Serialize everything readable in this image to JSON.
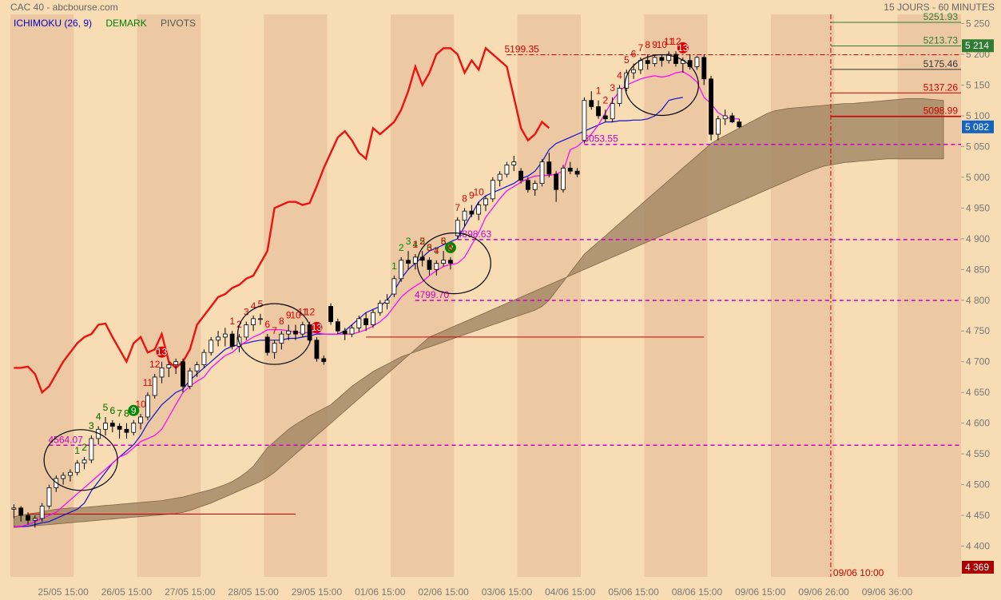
{
  "header": {
    "title": "CAC 40 - abcbourse.com",
    "period": "15 JOURS - 60 MINUTES",
    "legend": [
      {
        "label": "ICHIMOKU (26, 9)",
        "color": "#0000cc"
      },
      {
        "label": "DEMARK",
        "color": "#008000"
      },
      {
        "label": "PIVOTS",
        "color": "#555555"
      }
    ]
  },
  "chart_data": {
    "type": "candlestick",
    "ylim": [
      4350,
      5265
    ],
    "y_ticks": [
      {
        "v": 4400,
        "label": "4 400"
      },
      {
        "v": 4450,
        "label": "4 450"
      },
      {
        "v": 4500,
        "label": "4 500"
      },
      {
        "v": 4550,
        "label": "4 550"
      },
      {
        "v": 4600,
        "label": "4 600"
      },
      {
        "v": 4650,
        "label": "4 650"
      },
      {
        "v": 4700,
        "label": "4 700"
      },
      {
        "v": 4750,
        "label": "4 750"
      },
      {
        "v": 4800,
        "label": "4 800"
      },
      {
        "v": 4850,
        "label": "4 850"
      },
      {
        "v": 4900,
        "label": "4 900"
      },
      {
        "v": 4950,
        "label": "4 950"
      },
      {
        "v": 5000,
        "label": "5 000"
      },
      {
        "v": 5050,
        "label": "5 050"
      },
      {
        "v": 5100,
        "label": "5 100"
      },
      {
        "v": 5150,
        "label": "5 150"
      },
      {
        "v": 5200,
        "label": "5 200"
      },
      {
        "v": 5250,
        "label": "5 250"
      }
    ],
    "x_ticks": [
      "25/05 15:00",
      "26/05 15:00",
      "27/05 15:00",
      "28/05 15:00",
      "29/05 15:00",
      "01/06 15:00",
      "02/06 15:00",
      "03/06 15:00",
      "04/06 15:00",
      "05/06 15:00",
      "08/06 15:00",
      "09/06 15:00",
      "09/06 26:00",
      "09/06 36:00"
    ],
    "n_days": 15,
    "bars_per_day": 9,
    "last_price": {
      "value": 5082,
      "label": "5 082",
      "color": "#1565c0"
    },
    "cursor": {
      "bar": 116,
      "label": "09/06 10:00",
      "price_label": "4 369"
    },
    "candles": [
      [
        4460,
        4468,
        4445,
        4462
      ],
      [
        4462,
        4465,
        4440,
        4450
      ],
      [
        4450,
        4455,
        4435,
        4442
      ],
      [
        4442,
        4450,
        4430,
        4445
      ],
      [
        4445,
        4470,
        4440,
        4465
      ],
      [
        4465,
        4500,
        4460,
        4495
      ],
      [
        4495,
        4515,
        4488,
        4510
      ],
      [
        4510,
        4520,
        4500,
        4515
      ],
      [
        4515,
        4525,
        4505,
        4520
      ],
      [
        4520,
        4540,
        4515,
        4535
      ],
      [
        4535,
        4545,
        4525,
        4540
      ],
      [
        4540,
        4580,
        4535,
        4575
      ],
      [
        4575,
        4595,
        4565,
        4590
      ],
      [
        4590,
        4610,
        4580,
        4600
      ],
      [
        4600,
        4605,
        4585,
        4595
      ],
      [
        4595,
        4600,
        4575,
        4590
      ],
      [
        4590,
        4600,
        4575,
        4585
      ],
      [
        4585,
        4605,
        4580,
        4600
      ],
      [
        4600,
        4615,
        4590,
        4610
      ],
      [
        4610,
        4650,
        4605,
        4645
      ],
      [
        4645,
        4680,
        4640,
        4675
      ],
      [
        4675,
        4700,
        4665,
        4690
      ],
      [
        4690,
        4700,
        4675,
        4695
      ],
      [
        4695,
        4705,
        4680,
        4700
      ],
      [
        4700,
        4705,
        4650,
        4660
      ],
      [
        4660,
        4690,
        4655,
        4685
      ],
      [
        4685,
        4700,
        4675,
        4695
      ],
      [
        4695,
        4720,
        4690,
        4715
      ],
      [
        4715,
        4740,
        4710,
        4735
      ],
      [
        4735,
        4750,
        4725,
        4740
      ],
      [
        4740,
        4755,
        4725,
        4745
      ],
      [
        4745,
        4750,
        4720,
        4725
      ],
      [
        4725,
        4745,
        4715,
        4740
      ],
      [
        4740,
        4765,
        4735,
        4760
      ],
      [
        4760,
        4775,
        4750,
        4770
      ],
      [
        4770,
        4778,
        4760,
        4770
      ],
      [
        4740,
        4745,
        4710,
        4715
      ],
      [
        4715,
        4735,
        4705,
        4730
      ],
      [
        4730,
        4750,
        4720,
        4745
      ],
      [
        4745,
        4760,
        4735,
        4750
      ],
      [
        4750,
        4760,
        4735,
        4745
      ],
      [
        4745,
        4765,
        4740,
        4760
      ],
      [
        4760,
        4765,
        4730,
        4735
      ],
      [
        4735,
        4740,
        4700,
        4705
      ],
      [
        4705,
        4710,
        4695,
        4700
      ],
      [
        4790,
        4795,
        4760,
        4765
      ],
      [
        4765,
        4770,
        4745,
        4750
      ],
      [
        4750,
        4755,
        4735,
        4745
      ],
      [
        4745,
        4760,
        4740,
        4755
      ],
      [
        4755,
        4775,
        4748,
        4770
      ],
      [
        4770,
        4780,
        4750,
        4760
      ],
      [
        4760,
        4785,
        4755,
        4780
      ],
      [
        4780,
        4800,
        4775,
        4795
      ],
      [
        4795,
        4810,
        4785,
        4800
      ],
      [
        4810,
        4840,
        4805,
        4835
      ],
      [
        4835,
        4870,
        4830,
        4865
      ],
      [
        4865,
        4880,
        4850,
        4860
      ],
      [
        4860,
        4875,
        4850,
        4870
      ],
      [
        4870,
        4880,
        4855,
        4865
      ],
      [
        4865,
        4870,
        4840,
        4850
      ],
      [
        4850,
        4865,
        4840,
        4860
      ],
      [
        4860,
        4880,
        4855,
        4865
      ],
      [
        4865,
        4870,
        4850,
        4860
      ],
      [
        4905,
        4935,
        4900,
        4930
      ],
      [
        4930,
        4950,
        4920,
        4945
      ],
      [
        4945,
        4955,
        4935,
        4940
      ],
      [
        4940,
        4960,
        4930,
        4955
      ],
      [
        4955,
        4970,
        4945,
        4965
      ],
      [
        4965,
        5000,
        4960,
        4995
      ],
      [
        4995,
        5010,
        4985,
        5005
      ],
      [
        5005,
        5025,
        5000,
        5020
      ],
      [
        5020,
        5035,
        5010,
        5025
      ],
      [
        5010,
        5015,
        4990,
        4995
      ],
      [
        4995,
        5000,
        4975,
        4980
      ],
      [
        4980,
        4995,
        4970,
        4990
      ],
      [
        4990,
        5030,
        4985,
        5025
      ],
      [
        5025,
        5040,
        5000,
        5005
      ],
      [
        5005,
        5010,
        4960,
        4980
      ],
      [
        4980,
        5020,
        4975,
        5015
      ],
      [
        5015,
        5025,
        5005,
        5010
      ],
      [
        5010,
        5015,
        5000,
        5005
      ],
      [
        5060,
        5130,
        5055,
        5125
      ],
      [
        5125,
        5140,
        5110,
        5115
      ],
      [
        5115,
        5125,
        5095,
        5100
      ],
      [
        5100,
        5110,
        5090,
        5095
      ],
      [
        5095,
        5130,
        5090,
        5120
      ],
      [
        5120,
        5150,
        5115,
        5145
      ],
      [
        5145,
        5175,
        5140,
        5170
      ],
      [
        5170,
        5185,
        5160,
        5175
      ],
      [
        5175,
        5195,
        5168,
        5190
      ],
      [
        5190,
        5200,
        5175,
        5185
      ],
      [
        5185,
        5200,
        5180,
        5195
      ],
      [
        5195,
        5200,
        5180,
        5190
      ],
      [
        5190,
        5205,
        5185,
        5200
      ],
      [
        5200,
        5205,
        5180,
        5185
      ],
      [
        5185,
        5195,
        5170,
        5190
      ],
      [
        5190,
        5200,
        5175,
        5180
      ],
      [
        5180,
        5198,
        5175,
        5195
      ],
      [
        5195,
        5200,
        5150,
        5160
      ],
      [
        5160,
        5165,
        5060,
        5070
      ],
      [
        5070,
        5100,
        5060,
        5095
      ],
      [
        5095,
        5110,
        5085,
        5100
      ],
      [
        5100,
        5105,
        5088,
        5090
      ],
      [
        5090,
        5095,
        5080,
        5082
      ]
    ],
    "cloud_top": [
      4448,
      4450,
      4452,
      4454,
      4456,
      4458,
      4460,
      4461,
      4462,
      4462,
      4463,
      4464,
      4465,
      4466,
      4467,
      4468,
      4469,
      4470,
      4471,
      4472,
      4473,
      4474,
      4476,
      4478,
      4480,
      4483,
      4486,
      4489,
      4492,
      4496,
      4500,
      4505,
      4512,
      4520,
      4530,
      4545,
      4560,
      4570,
      4580,
      4590,
      4598,
      4605,
      4612,
      4618,
      4624,
      4630,
      4640,
      4650,
      4660,
      4668,
      4676,
      4684,
      4690,
      4696,
      4702,
      4708,
      4712,
      4716,
      4720,
      4724,
      4728,
      4732,
      4736,
      4740,
      4744,
      4748,
      4752,
      4756,
      4760,
      4764,
      4768,
      4772,
      4776,
      4780,
      4784,
      4790,
      4800,
      4815,
      4830,
      4845,
      4860,
      4875,
      4885,
      4895,
      4905,
      4915,
      4925,
      4935,
      4945,
      4955,
      4965,
      4975,
      4985,
      4995,
      5005,
      5015,
      5025,
      5035,
      5045,
      5055,
      5062,
      5068,
      5074,
      5080,
      5086,
      5092,
      5098,
      5104,
      5108,
      5110,
      5112,
      5113,
      5114,
      5115,
      5116,
      5117,
      5118,
      5119,
      5120,
      5120,
      5121,
      5122,
      5123,
      5124,
      5125,
      5126,
      5127,
      5128,
      5128,
      5128,
      5127,
      5126,
      5125
    ],
    "cloud_bottom": [
      4430,
      4431,
      4432,
      4433,
      4434,
      4435,
      4436,
      4437,
      4438,
      4439,
      4440,
      4441,
      4442,
      4443,
      4444,
      4445,
      4446,
      4447,
      4448,
      4449,
      4450,
      4451,
      4452,
      4453,
      4455,
      4458,
      4462,
      4466,
      4470,
      4475,
      4480,
      4485,
      4490,
      4495,
      4500,
      4505,
      4512,
      4520,
      4530,
      4540,
      4550,
      4560,
      4570,
      4580,
      4590,
      4600,
      4610,
      4620,
      4630,
      4640,
      4650,
      4660,
      4670,
      4680,
      4690,
      4700,
      4710,
      4720,
      4730,
      4740,
      4745,
      4750,
      4755,
      4760,
      4765,
      4770,
      4775,
      4780,
      4785,
      4790,
      4795,
      4800,
      4805,
      4810,
      4815,
      4820,
      4825,
      4830,
      4835,
      4840,
      4845,
      4850,
      4855,
      4860,
      4865,
      4870,
      4875,
      4880,
      4885,
      4890,
      4895,
      4900,
      4905,
      4910,
      4915,
      4920,
      4925,
      4930,
      4935,
      4940,
      4945,
      4950,
      4955,
      4960,
      4965,
      4970,
      4975,
      4980,
      4985,
      4990,
      4995,
      5000,
      5005,
      5010,
      5014,
      5018,
      5020,
      5022,
      5024,
      5025,
      5026,
      5027,
      5028,
      5029,
      5030,
      5030,
      5030,
      5030,
      5030,
      5030,
      5030,
      5030,
      5030
    ],
    "tenkan": [
      4432,
      4432,
      4435,
      4440,
      4445,
      4450,
      4455,
      4465,
      4475,
      4485,
      4495,
      4505,
      4515,
      4525,
      4535,
      4545,
      4550,
      4560,
      4570,
      4575,
      4580,
      4590,
      4610,
      4630,
      4650,
      4660,
      4668,
      4675,
      4690,
      4700,
      4710,
      4715,
      4725,
      4733,
      4740,
      4745,
      4752,
      4752,
      4752,
      4750,
      4748,
      4747,
      4747,
      4747,
      4745,
      4745,
      4745,
      4745,
      4745,
      4748,
      4752,
      4758,
      4765,
      4775,
      4790,
      4805,
      4815,
      4823,
      4830,
      4840,
      4848,
      4855,
      4858,
      4860,
      4870,
      4890,
      4910,
      4935,
      4950,
      4965,
      4978,
      4985,
      4992,
      4998,
      5002,
      5003,
      5003,
      5005,
      5010,
      5045,
      5050,
      5060,
      5070,
      5085,
      5105,
      5125,
      5140,
      5150,
      5155,
      5160,
      5163,
      5165,
      5163,
      5165,
      5170,
      5172,
      5165,
      5155,
      5130,
      5120,
      5105,
      5098,
      5095,
      5095
    ],
    "kijun": [
      4432,
      4432,
      4432,
      4435,
      4438,
      4440,
      4445,
      4450,
      4455,
      4460,
      4470,
      4490,
      4505,
      4520,
      4535,
      4545,
      4555,
      4565,
      4580,
      4600,
      4615,
      4630,
      4640,
      4650,
      4655,
      4670,
      4680,
      4690,
      4700,
      4710,
      4720,
      4725,
      4728,
      4730,
      4733,
      4735,
      4735,
      4735,
      4735,
      4738,
      4738,
      4740,
      4742,
      4745,
      4745,
      4745,
      4745,
      4750,
      4760,
      4770,
      4780,
      4785,
      4790,
      4800,
      4815,
      4835,
      4850,
      4860,
      4870,
      4880,
      4885,
      4890,
      4895,
      4900,
      4920,
      4940,
      4960,
      4970,
      4975,
      4980,
      4985,
      4990,
      4998,
      5002,
      5010,
      5025,
      5045,
      5055,
      5060,
      5065,
      5070,
      5075,
      5080,
      5085,
      5090,
      5090,
      5092,
      5092,
      5093,
      5093,
      5095,
      5100,
      5110,
      5125,
      5128,
      5130
    ]
  },
  "chikou": [
    4690,
    4690,
    4692,
    4680,
    4650,
    4660,
    4680,
    4700,
    4715,
    4730,
    4740,
    4745,
    4760,
    4762,
    4740,
    4720,
    4700,
    4730,
    4740,
    4715,
    4720,
    4745,
    4700,
    4690,
    4700,
    4720,
    4760,
    4775,
    4790,
    4805,
    4810,
    4820,
    4825,
    4835,
    4840,
    4860,
    4880,
    4950,
    4955,
    4960,
    4960,
    4955,
    4958,
    4985,
    5015,
    5040,
    5065,
    5075,
    5060,
    5040,
    5030,
    5080,
    5070,
    5080,
    5090,
    5110,
    5140,
    5180,
    5150,
    5170,
    5200,
    5210,
    5210,
    5200,
    5170,
    5190,
    5175,
    5210,
    5200,
    5190,
    5180,
    5130,
    5080,
    5060,
    5070,
    5090,
    5080
  ],
  "resistance_lines": [
    {
      "value": 5251.93,
      "label": "5251.93",
      "color": "#2e7d32",
      "dash": false,
      "from_bar": 117
    },
    {
      "value": 5213.73,
      "label": "5213.73",
      "color": "#2e7d32",
      "dash": false,
      "from_bar": 117
    },
    {
      "value": 5175.46,
      "label": "5175.46",
      "color": "#333333",
      "dash": false,
      "from_bar": 117
    },
    {
      "value": 5137.26,
      "label": "5137.26",
      "color": "#cc0000",
      "dash": false,
      "from_bar": 117
    },
    {
      "value": 5098.99,
      "label": "5098.99",
      "color": "#cc0000",
      "dash": false,
      "from_bar": 117
    },
    {
      "value": 5199.35,
      "label": "5199.35",
      "color": "#cc0000",
      "dash": true,
      "from_bar": 70
    }
  ],
  "support_lines": [
    {
      "value": 5053.55,
      "label": "5053.55",
      "from_bar": 81
    },
    {
      "value": 4898.63,
      "label": "4898.63",
      "from_bar": 63
    },
    {
      "value": 4799.7,
      "label": "4799.70",
      "from_bar": 57
    },
    {
      "value": 4564.07,
      "label": "4564.07",
      "from_bar": 5
    }
  ],
  "price_tags": [
    {
      "value": 5214,
      "label": "5 214",
      "color": "#2e7d32"
    },
    {
      "value": 5082,
      "label": "5 082",
      "color": "#1565c0"
    }
  ],
  "setups": [
    {
      "type": "sell",
      "start_bar": 9,
      "count": 13
    },
    {
      "type": "sell",
      "start_bar": 31,
      "count": 13
    },
    {
      "type": "buy",
      "start_bar": 54,
      "count": 9
    },
    {
      "type": "buy",
      "start_bar": 9,
      "count": 9
    },
    {
      "type": "sell",
      "start_bar": 57,
      "count": 10
    },
    {
      "type": "sell",
      "start_bar": 83,
      "count": 13
    }
  ],
  "flat_lines": [
    {
      "value": 4452,
      "from_bar": 2,
      "to_bar": 40,
      "color": "#cc0000"
    },
    {
      "value": 4740,
      "from_bar": 50,
      "to_bar": 98,
      "color": "#cc0000"
    }
  ],
  "circles": [
    {
      "bar": 9.5,
      "value": 4540
    },
    {
      "bar": 37,
      "value": 4745
    },
    {
      "bar": 62.5,
      "value": 4860
    },
    {
      "bar": 92,
      "value": 5150
    }
  ],
  "cursor_label": "09/06 10:00",
  "cursor_price": "4 369"
}
